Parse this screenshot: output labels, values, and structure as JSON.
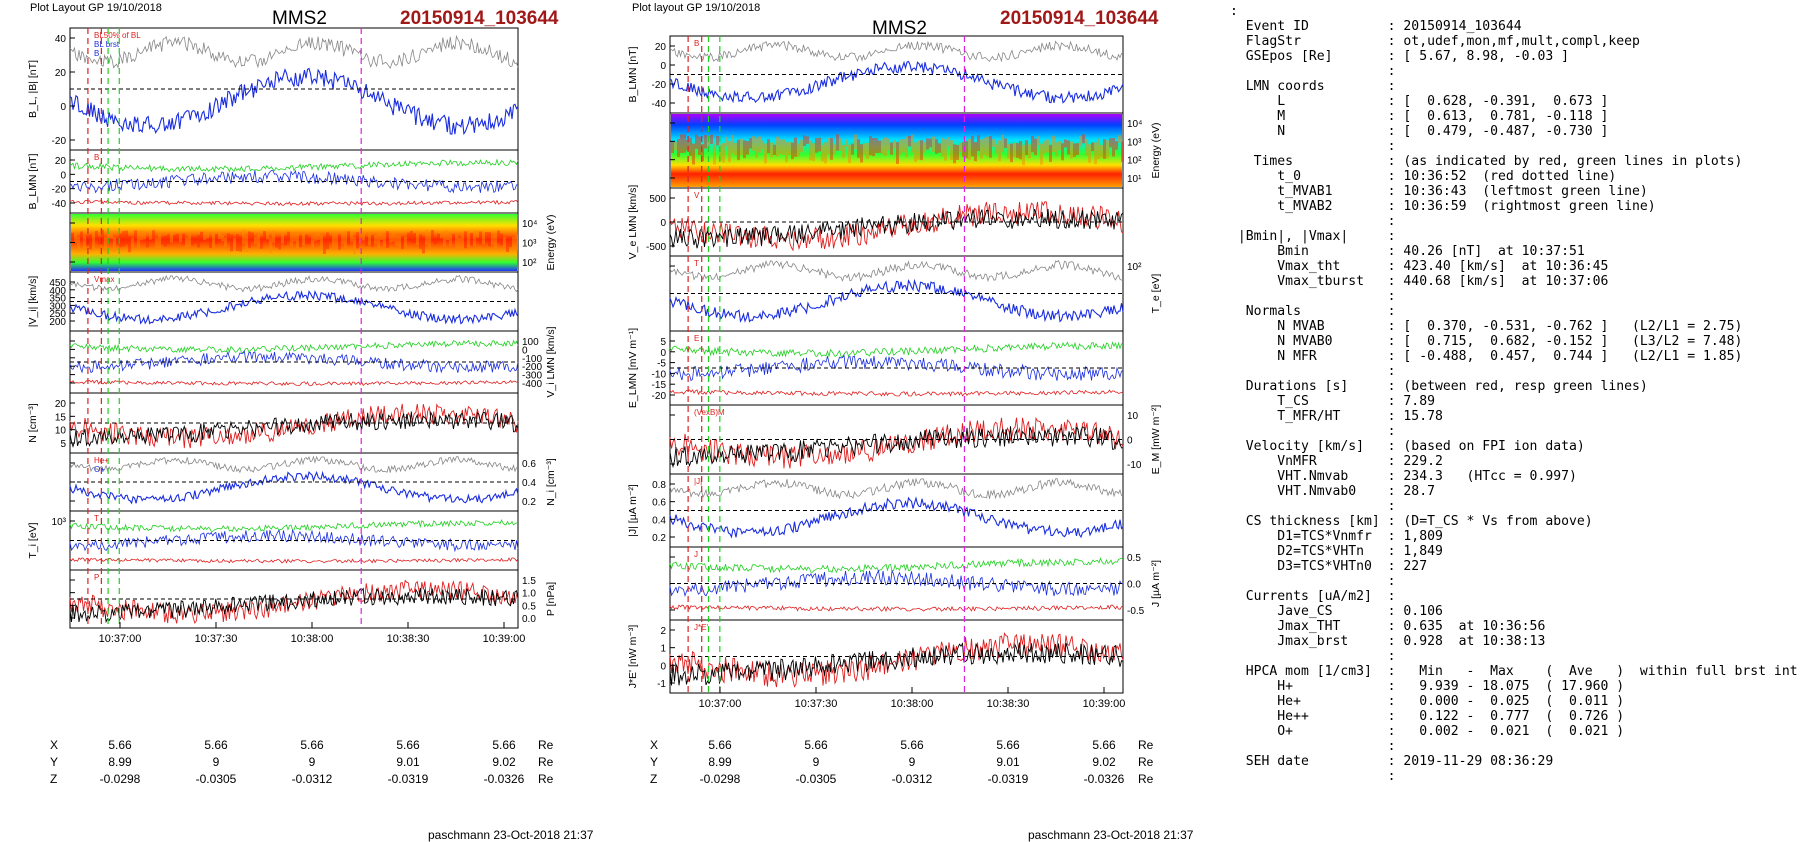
{
  "plot1": {
    "header": "Plot Layout GP 19/10/2018",
    "title": "MMS2",
    "event": "20150914_103644",
    "signature": "paschmann 23-Oct-2018 21:37",
    "x_ticks": [
      "10:37:00",
      "10:37:30",
      "10:38:00",
      "10:38:30",
      "10:39:00"
    ],
    "panels": [
      {
        "ylabel": "B_L, |B| [nT]",
        "ylabel_side": "left",
        "ticks": [
          "40",
          "20",
          "0",
          "-20"
        ],
        "legend": [
          "BL50% of BL",
          "BL brst",
          "B"
        ]
      },
      {
        "ylabel": "B_LMN [nT]",
        "ylabel_side": "left",
        "ticks": [
          "20",
          "0",
          "-20",
          "-40"
        ],
        "legend": [
          "B"
        ]
      },
      {
        "ylabel": "Energy (eV)",
        "ylabel_side": "right",
        "ticks": [
          "10⁴",
          "10³",
          "10²"
        ],
        "legend": []
      },
      {
        "ylabel": "|V_i| [km/s]",
        "ylabel_side": "left",
        "ticks": [
          "450",
          "400",
          "350",
          "300",
          "250",
          "200"
        ],
        "legend": [
          "Vmax"
        ]
      },
      {
        "ylabel": "V_i LMN [km/s]",
        "ylabel_side": "right",
        "ticks": [
          "100",
          "0",
          "-100",
          "-200",
          "-300",
          "-400"
        ],
        "legend": []
      },
      {
        "ylabel": "N [cm⁻³]",
        "ylabel_side": "left",
        "ticks": [
          "20",
          "15",
          "10",
          "5"
        ],
        "legend": []
      },
      {
        "ylabel": "N_i [cm⁻³]",
        "ylabel_side": "right",
        "ticks": [
          "0.6",
          "0.4",
          "0.2"
        ],
        "legend": [
          "He+",
          "O+"
        ]
      },
      {
        "ylabel": "T_i [eV]",
        "ylabel_side": "left",
        "ticks": [
          "10³"
        ],
        "legend": [
          "T"
        ]
      },
      {
        "ylabel": "P [nPa]",
        "ylabel_side": "right",
        "ticks": [
          "1.5",
          "1.0",
          "0.5",
          "0.0"
        ],
        "legend": [
          "P"
        ]
      }
    ],
    "coords": {
      "rows": [
        {
          "label": "X",
          "values": [
            "5.66",
            "5.66",
            "5.66",
            "5.66",
            "5.66"
          ],
          "unit": "Re"
        },
        {
          "label": "Y",
          "values": [
            "8.99",
            "9",
            "9",
            "9.01",
            "9.02"
          ],
          "unit": "Re"
        },
        {
          "label": "Z",
          "values": [
            "-0.0298",
            "-0.0305",
            "-0.0312",
            "-0.0319",
            "-0.0326"
          ],
          "unit": "Re"
        }
      ]
    }
  },
  "plot2": {
    "header": "Plot layout GP 19/10/2018",
    "title": "MMS2",
    "event": "20150914_103644",
    "signature": "paschmann 23-Oct-2018 21:37",
    "x_ticks": [
      "10:37:00",
      "10:37:30",
      "10:38:00",
      "10:38:30",
      "10:39:00"
    ],
    "panels": [
      {
        "ylabel": "B_LMN [nT]",
        "ylabel_side": "left",
        "ticks": [
          "20",
          "0",
          "-20",
          "-40"
        ],
        "legend": [
          "B"
        ]
      },
      {
        "ylabel": "Energy (eV)",
        "ylabel_side": "right",
        "ticks": [
          "10⁴",
          "10³",
          "10²",
          "10¹"
        ],
        "legend": []
      },
      {
        "ylabel": "V_e LMN [km/s]",
        "ylabel_side": "left",
        "ticks": [
          "500",
          "0",
          "-500"
        ],
        "legend": [
          "V"
        ]
      },
      {
        "ylabel": "T_e [eV]",
        "ylabel_side": "right",
        "ticks": [
          "10²"
        ],
        "legend": [
          "T"
        ]
      },
      {
        "ylabel": "E_LMN [mV m⁻¹]",
        "ylabel_side": "left",
        "ticks": [
          "5",
          "0",
          "-5",
          "-10",
          "-15",
          "-20"
        ],
        "legend": [
          "E"
        ]
      },
      {
        "ylabel": "E_M [mW m⁻²]",
        "ylabel_side": "right",
        "ticks": [
          "10",
          "0",
          "-10"
        ],
        "legend": [
          "(VexB)M"
        ]
      },
      {
        "ylabel": "|J| [µA m⁻²]",
        "ylabel_side": "left",
        "ticks": [
          "0.8",
          "0.6",
          "0.4",
          "0.2"
        ],
        "legend": [
          "|J|"
        ]
      },
      {
        "ylabel": "J [µA m⁻²]",
        "ylabel_side": "right",
        "ticks": [
          "0.5",
          "0.0",
          "-0.5"
        ],
        "legend": [
          "J"
        ]
      },
      {
        "ylabel": "J*E' [nW m⁻³]",
        "ylabel_side": "left",
        "ticks": [
          "2",
          "1",
          "0",
          "-1"
        ],
        "legend": [
          "J*E'"
        ]
      }
    ],
    "coords": {
      "rows": [
        {
          "label": "X",
          "values": [
            "5.66",
            "5.66",
            "5.66",
            "5.66",
            "5.66"
          ],
          "unit": "Re"
        },
        {
          "label": "Y",
          "values": [
            "8.99",
            "9",
            "9",
            "9.01",
            "9.02"
          ],
          "unit": "Re"
        },
        {
          "label": "Z",
          "values": [
            "-0.0298",
            "-0.0305",
            "-0.0312",
            "-0.0319",
            "-0.0326"
          ],
          "unit": "Re"
        }
      ]
    }
  },
  "colors": {
    "red": "#e02020",
    "green": "#20d020",
    "blue": "#1a2ee0",
    "black": "#000000",
    "magenta": "#e020e0",
    "gray": "#888888",
    "event_red": "#a01818"
  },
  "info_lines": [
    ":",
    "  Event ID          : 20150914_103644",
    "  FlagStr           : ot,udef,mon,mf,mult,compl,keep",
    "  GSEpos [Re]       : [ 5.67, 8.98, -0.03 ]",
    "                    :",
    "  LMN coords        :",
    "      L             : [  0.628, -0.391,  0.673 ]",
    "      M             : [  0.613,  0.781, -0.118 ]",
    "      N             : [  0.479, -0.487, -0.730 ]",
    "                    :",
    "   Times            : (as indicated by red, green lines in plots)",
    "      t_0           : 10:36:52  (red dotted line)",
    "      t_MVAB1       : 10:36:43  (leftmost green line)",
    "      t_MVAB2       : 10:36:59  (rightmost green line)",
    "                    :",
    " |Bmin|, |Vmax|     :",
    "      Bmin          : 40.26 [nT]  at 10:37:51",
    "      Vmax_tht      : 423.40 [km/s]  at 10:36:45",
    "      Vmax_tburst   : 440.68 [km/s]  at 10:37:06",
    "                    :",
    "  Normals           :",
    "      N MVAB        : [  0.370, -0.531, -0.762 ]   (L2/L1 = 2.75)",
    "      N MVAB0       : [  0.715,  0.682, -0.152 ]   (L3/L2 = 7.48)",
    "      N MFR         : [ -0.488,  0.457,  0.744 ]   (L2/L1 = 1.85)",
    "                    :",
    "  Durations [s]     : (between red, resp green lines)",
    "      T_CS          : 7.89",
    "      T_MFR/HT      : 15.78",
    "                    :",
    "  Velocity [km/s]   : (based on FPI ion data)",
    "      VnMFR         : 229.2",
    "      VHT.Nmvab     : 234.3   (HTcc = 0.997)",
    "      VHT.Nmvab0    : 28.7",
    "                    :",
    "  CS thickness [km] : (D=T_CS * Vs from above)",
    "      D1=TCS*Vnmfr  : 1,809",
    "      D2=TCS*VHTn   : 1,849",
    "      D3=TCS*VHTn0  : 227",
    "                    :",
    "  Currents [uA/m2]  :",
    "      Jave_CS       : 0.106",
    "      Jmax_THT      : 0.635  at 10:36:56",
    "      Jmax_brst     : 0.928  at 10:38:13",
    "                    :",
    "  HPCA mom [1/cm3]  :   Min   -  Max    (  Ave   )  within full brst int",
    "      H+            :   9.939 - 18.075  ( 17.960 )",
    "      He+           :   0.000 -  0.025  (  0.011 )",
    "      He++          :   0.122 -  0.777  (  0.726 )",
    "      O+            :   0.002 -  0.021  (  0.021 )",
    "                    :",
    "  SEH date          : 2019-11-29 08:36:29",
    "                    :"
  ]
}
